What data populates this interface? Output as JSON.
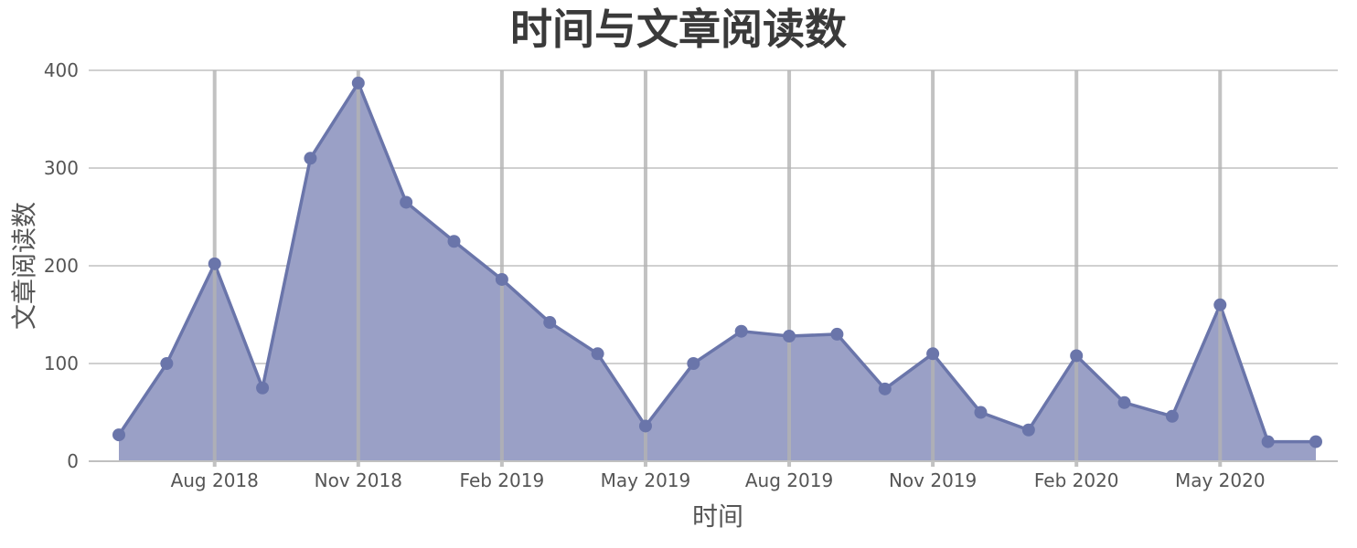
{
  "chart_data": {
    "type": "area",
    "title": "时间与文章阅读数",
    "xlabel": "时间",
    "ylabel": "文章阅读数",
    "ylim": [
      0,
      400
    ],
    "y_ticks": [
      0,
      100,
      200,
      300,
      400
    ],
    "x_tick_labels": [
      "Aug 2018",
      "Nov 2018",
      "Feb 2019",
      "May 2019",
      "Aug 2019",
      "Nov 2019",
      "Feb 2020",
      "May 2020"
    ],
    "x": [
      "2018-06",
      "2018-07",
      "2018-08",
      "2018-09",
      "2018-10",
      "2018-11",
      "2018-12",
      "2019-01",
      "2019-02",
      "2019-03",
      "2019-04",
      "2019-05",
      "2019-06",
      "2019-07",
      "2019-08",
      "2019-09",
      "2019-10",
      "2019-11",
      "2019-12",
      "2020-01",
      "2020-02",
      "2020-03",
      "2020-04",
      "2020-05",
      "2020-06",
      "2020-07"
    ],
    "series": [
      {
        "values": [
          27,
          100,
          202,
          75,
          310,
          387,
          265,
          225,
          186,
          142,
          110,
          36,
          100,
          133,
          128,
          130,
          74,
          110,
          50,
          32,
          108,
          60,
          46,
          160,
          20,
          20
        ]
      }
    ],
    "grid": {
      "horizontal": true,
      "vertical": true
    },
    "colors": {
      "fill": "#9aa0c6",
      "line": "#6a75aa",
      "marker": "#6a75aa"
    }
  }
}
